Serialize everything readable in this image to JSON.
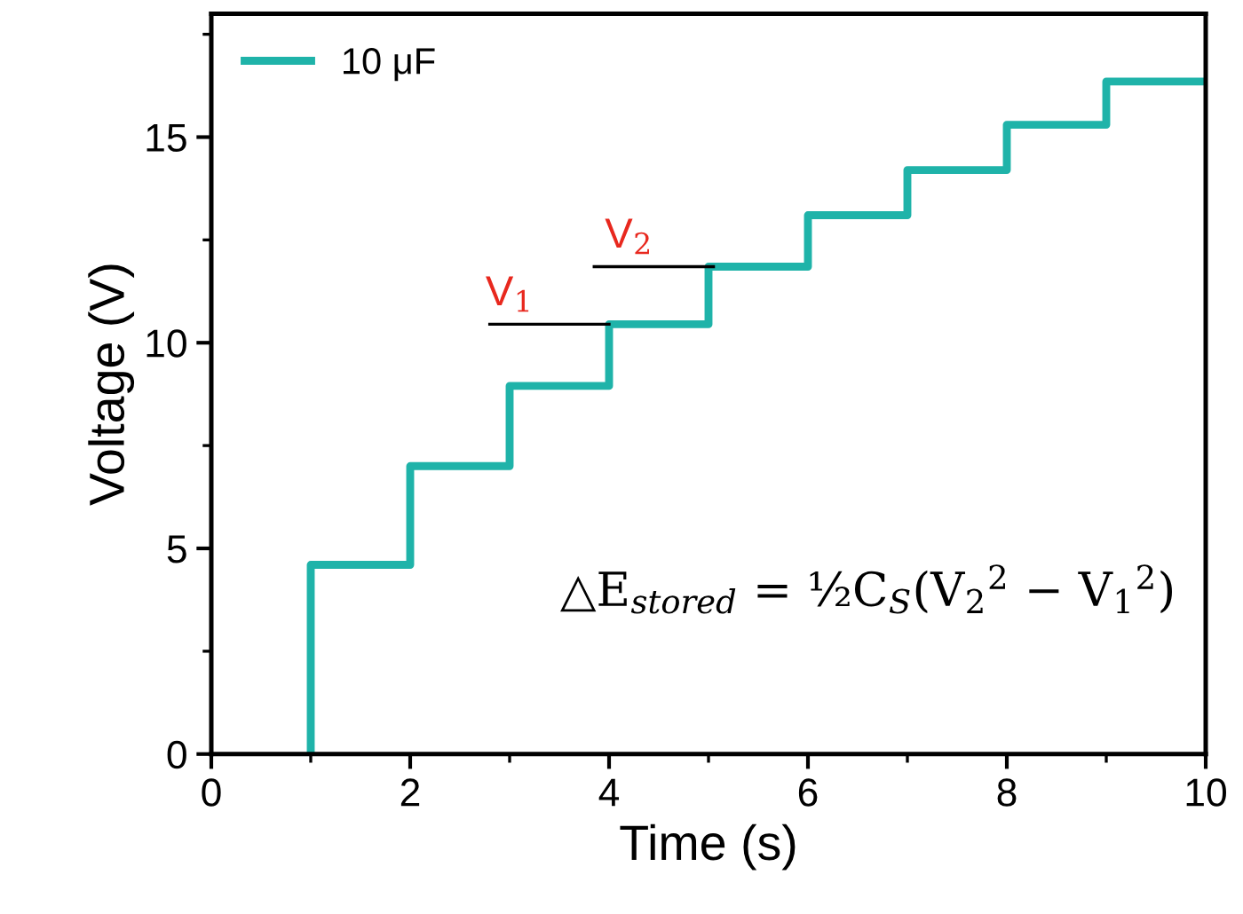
{
  "chart_data": {
    "type": "step",
    "xlabel": "Time (s)",
    "ylabel": "Voltage (V)",
    "xlim": [
      0,
      10
    ],
    "ylim": [
      0,
      18
    ],
    "xticks": [
      0,
      2,
      4,
      6,
      8,
      10
    ],
    "yticks": [
      0,
      5,
      10,
      15
    ],
    "grid": false,
    "legend": "top left",
    "line_style": "solid",
    "marker": "none",
    "series": [
      {
        "name": "10 μF",
        "color": "#1fb3a9",
        "x": [
          1,
          1,
          2,
          3,
          4,
          5,
          6,
          7,
          8,
          9,
          10
        ],
        "values": [
          0,
          4.6,
          7.0,
          8.95,
          10.45,
          11.85,
          13.1,
          14.2,
          15.3,
          16.35,
          16.35
        ]
      },
      {
        "type": "line",
        "color": "#000000",
        "x": [
          2.8,
          4.0
        ],
        "values": [
          10.45,
          10.45
        ]
      },
      {
        "type": "line",
        "color": "#000000",
        "x": [
          3.85,
          5.05
        ],
        "values": [
          11.85,
          11.85
        ]
      }
    ],
    "annotations": [
      {
        "text": "V$_{1}$",
        "x": 3.0,
        "y": 10.45
      },
      {
        "text": "V$_{2}$",
        "x": 4.2,
        "y": 11.85
      },
      "△E$_{stored}$ = ½C$_{S}$(V$_{2}$$^{2}$ − V$_{1}$$^{2}$)"
    ]
  }
}
